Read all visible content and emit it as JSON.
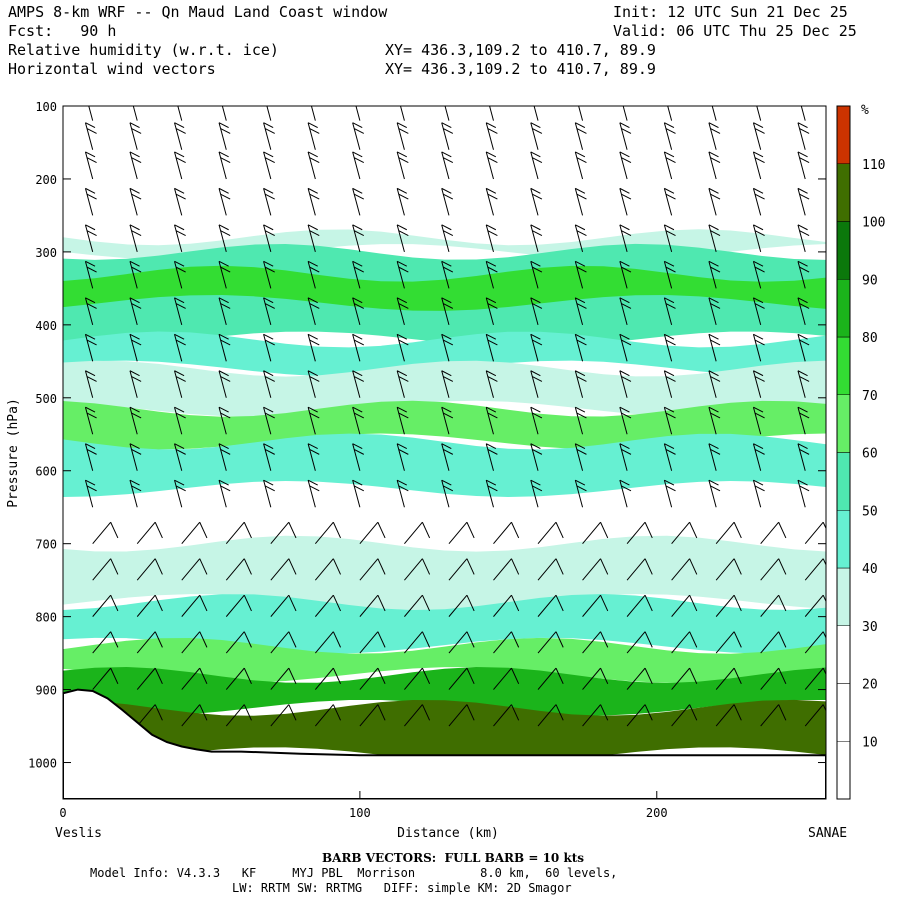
{
  "header": {
    "title": "AMPS 8-km WRF -- Qn Maud Land Coast window",
    "init": "Init: 12 UTC Sun 21 Dec 25",
    "fcst": "Fcst:   90 h",
    "valid": "Valid: 06 UTC Thu 25 Dec 25",
    "field1": "Relative humidity (w.r.t. ice)",
    "xy1": "XY= 436.3,109.2 to 410.7, 89.9",
    "field2": "Horizontal wind vectors",
    "xy2": "XY= 436.3,109.2 to 410.7, 89.9"
  },
  "footer": {
    "barb_note": "BARB VECTORS:  FULL BARB = 10 kts",
    "model_info": "Model Info: V4.3.3   KF     MYJ PBL  Morrison         8.0 km,  60 levels,",
    "physics": "LW: RRTM SW: RRTMG   DIFF: simple KM: 2D Smagor"
  },
  "chart_data": {
    "type": "heatmap",
    "title": "Relative humidity (w.r.t. ice)",
    "xlabel": "Distance (km)",
    "ylabel": "Pressure (hPa)",
    "xlim": [
      0,
      257
    ],
    "ylim": [
      1050,
      100
    ],
    "x_ticks": [
      0,
      100,
      200
    ],
    "y_ticks": [
      100,
      200,
      300,
      400,
      500,
      600,
      700,
      800,
      900,
      1000
    ],
    "x_end_labels": {
      "left": "Veslis",
      "right": "SANAE"
    },
    "colorbar": {
      "unit": "%",
      "levels": [
        10,
        20,
        30,
        40,
        50,
        60,
        70,
        80,
        90,
        100,
        110
      ],
      "colors": [
        "#ffffff",
        "#ffffff",
        "#ffffff",
        "#c6f5e6",
        "#66f0d2",
        "#4fe8b0",
        "#66ee66",
        "#33dd33",
        "#1bb41b",
        "#0b780b",
        "#3f6e00",
        "#cc3300"
      ]
    },
    "rh_layers": [
      {
        "p_top": 280,
        "p_bottom": 300,
        "rh": 35
      },
      {
        "p_top": 300,
        "p_bottom": 420,
        "rh": 55
      },
      {
        "p_top": 330,
        "p_bottom": 370,
        "rh": 75
      },
      {
        "p_top": 420,
        "p_bottom": 460,
        "rh": 45
      },
      {
        "p_top": 460,
        "p_bottom": 515,
        "rh": 35
      },
      {
        "p_top": 515,
        "p_bottom": 560,
        "rh": 60
      },
      {
        "p_top": 560,
        "p_bottom": 625,
        "rh": 45
      },
      {
        "p_top": 700,
        "p_bottom": 780,
        "rh": 32
      },
      {
        "p_top": 780,
        "p_bottom": 840,
        "rh": 45
      },
      {
        "p_top": 840,
        "p_bottom": 880,
        "rh": 65
      },
      {
        "p_top": 880,
        "p_bottom": 925,
        "rh": 85
      },
      {
        "p_top": 925,
        "p_bottom": 990,
        "rh": 105
      }
    ],
    "terrain": {
      "distance_km": [
        0,
        5,
        10,
        15,
        20,
        25,
        30,
        35,
        40,
        45,
        50,
        60,
        80,
        100,
        150,
        200,
        257
      ],
      "pressure_hPa": [
        905,
        900,
        902,
        912,
        928,
        945,
        962,
        972,
        978,
        982,
        985,
        985,
        988,
        990,
        990,
        990,
        990
      ]
    },
    "wind_barbs": {
      "columns_km": [
        10,
        25,
        40,
        55,
        70,
        85,
        100,
        115,
        130,
        145,
        160,
        175,
        190,
        205,
        220,
        235,
        250
      ],
      "levels_hPa": [
        120,
        160,
        200,
        250,
        300,
        350,
        400,
        450,
        500,
        550,
        600,
        650,
        700,
        750,
        800,
        850,
        900,
        950
      ],
      "full_barb_kts": 10
    }
  }
}
